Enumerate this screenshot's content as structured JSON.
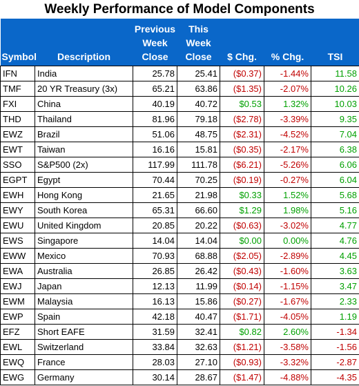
{
  "title": "Weekly Performance of Model Components",
  "headers": {
    "symbol": "Symbol",
    "description": "Description",
    "prev": [
      "Previous",
      "Week",
      "Close"
    ],
    "this": [
      "This",
      "Week",
      "Close"
    ],
    "chg": "$ Chg.",
    "pct": "% Chg.",
    "tsi": "TSI"
  },
  "rows": [
    {
      "symbol": "IFN",
      "description": "India",
      "prev": "25.78",
      "this": "25.41",
      "chg": "($0.37)",
      "pct": "-1.44%",
      "tsi": "11.58"
    },
    {
      "symbol": "TMF",
      "description": "20 YR Treasury (3x)",
      "prev": "65.21",
      "this": "63.86",
      "chg": "($1.35)",
      "pct": "-2.07%",
      "tsi": "10.26"
    },
    {
      "symbol": "FXI",
      "description": "China",
      "prev": "40.19",
      "this": "40.72",
      "chg": "$0.53",
      "pct": "1.32%",
      "tsi": "10.03"
    },
    {
      "symbol": "THD",
      "description": "Thailand",
      "prev": "81.96",
      "this": "79.18",
      "chg": "($2.78)",
      "pct": "-3.39%",
      "tsi": "9.35"
    },
    {
      "symbol": "EWZ",
      "description": "Brazil",
      "prev": "51.06",
      "this": "48.75",
      "chg": "($2.31)",
      "pct": "-4.52%",
      "tsi": "7.04"
    },
    {
      "symbol": "EWT",
      "description": "Taiwan",
      "prev": "16.16",
      "this": "15.81",
      "chg": "($0.35)",
      "pct": "-2.17%",
      "tsi": "6.38"
    },
    {
      "symbol": "SSO",
      "description": "S&P500 (2x)",
      "prev": "117.99",
      "this": "111.78",
      "chg": "($6.21)",
      "pct": "-5.26%",
      "tsi": "6.06"
    },
    {
      "symbol": "EGPT",
      "description": "Egypt",
      "prev": "70.44",
      "this": "70.25",
      "chg": "($0.19)",
      "pct": "-0.27%",
      "tsi": "6.04"
    },
    {
      "symbol": "EWH",
      "description": "Hong Kong",
      "prev": "21.65",
      "this": "21.98",
      "chg": "$0.33",
      "pct": "1.52%",
      "tsi": "5.68"
    },
    {
      "symbol": "EWY",
      "description": "South Korea",
      "prev": "65.31",
      "this": "66.60",
      "chg": "$1.29",
      "pct": "1.98%",
      "tsi": "5.16"
    },
    {
      "symbol": "EWU",
      "description": "United Kingdom",
      "prev": "20.85",
      "this": "20.22",
      "chg": "($0.63)",
      "pct": "-3.02%",
      "tsi": "4.77"
    },
    {
      "symbol": "EWS",
      "description": "Singapore",
      "prev": "14.04",
      "this": "14.04",
      "chg": "$0.00",
      "pct": "0.00%",
      "tsi": "4.76"
    },
    {
      "symbol": "EWW",
      "description": "Mexico",
      "prev": "70.93",
      "this": "68.88",
      "chg": "($2.05)",
      "pct": "-2.89%",
      "tsi": "4.45"
    },
    {
      "symbol": "EWA",
      "description": "Australia",
      "prev": "26.85",
      "this": "26.42",
      "chg": "($0.43)",
      "pct": "-1.60%",
      "tsi": "3.63"
    },
    {
      "symbol": "EWJ",
      "description": "Japan",
      "prev": "12.13",
      "this": "11.99",
      "chg": "($0.14)",
      "pct": "-1.15%",
      "tsi": "3.47"
    },
    {
      "symbol": "EWM",
      "description": "Malaysia",
      "prev": "16.13",
      "this": "15.86",
      "chg": "($0.27)",
      "pct": "-1.67%",
      "tsi": "2.33"
    },
    {
      "symbol": "EWP",
      "description": "Spain",
      "prev": "42.18",
      "this": "40.47",
      "chg": "($1.71)",
      "pct": "-4.05%",
      "tsi": "1.19"
    },
    {
      "symbol": "EFZ",
      "description": "Short EAFE",
      "prev": "31.59",
      "this": "32.41",
      "chg": "$0.82",
      "pct": "2.60%",
      "tsi": "-1.34"
    },
    {
      "symbol": "EWL",
      "description": "Switzerland",
      "prev": "33.84",
      "this": "32.63",
      "chg": "($1.21)",
      "pct": "-3.58%",
      "tsi": "-1.56"
    },
    {
      "symbol": "EWQ",
      "description": "France",
      "prev": "28.03",
      "this": "27.10",
      "chg": "($0.93)",
      "pct": "-3.32%",
      "tsi": "-2.87"
    },
    {
      "symbol": "EWG",
      "description": "Germany",
      "prev": "30.14",
      "this": "28.67",
      "chg": "($1.47)",
      "pct": "-4.88%",
      "tsi": "-4.35"
    }
  ],
  "colors": {
    "header_bg": "#0a67c9",
    "negative": "#c00000",
    "positive": "#00a000"
  }
}
